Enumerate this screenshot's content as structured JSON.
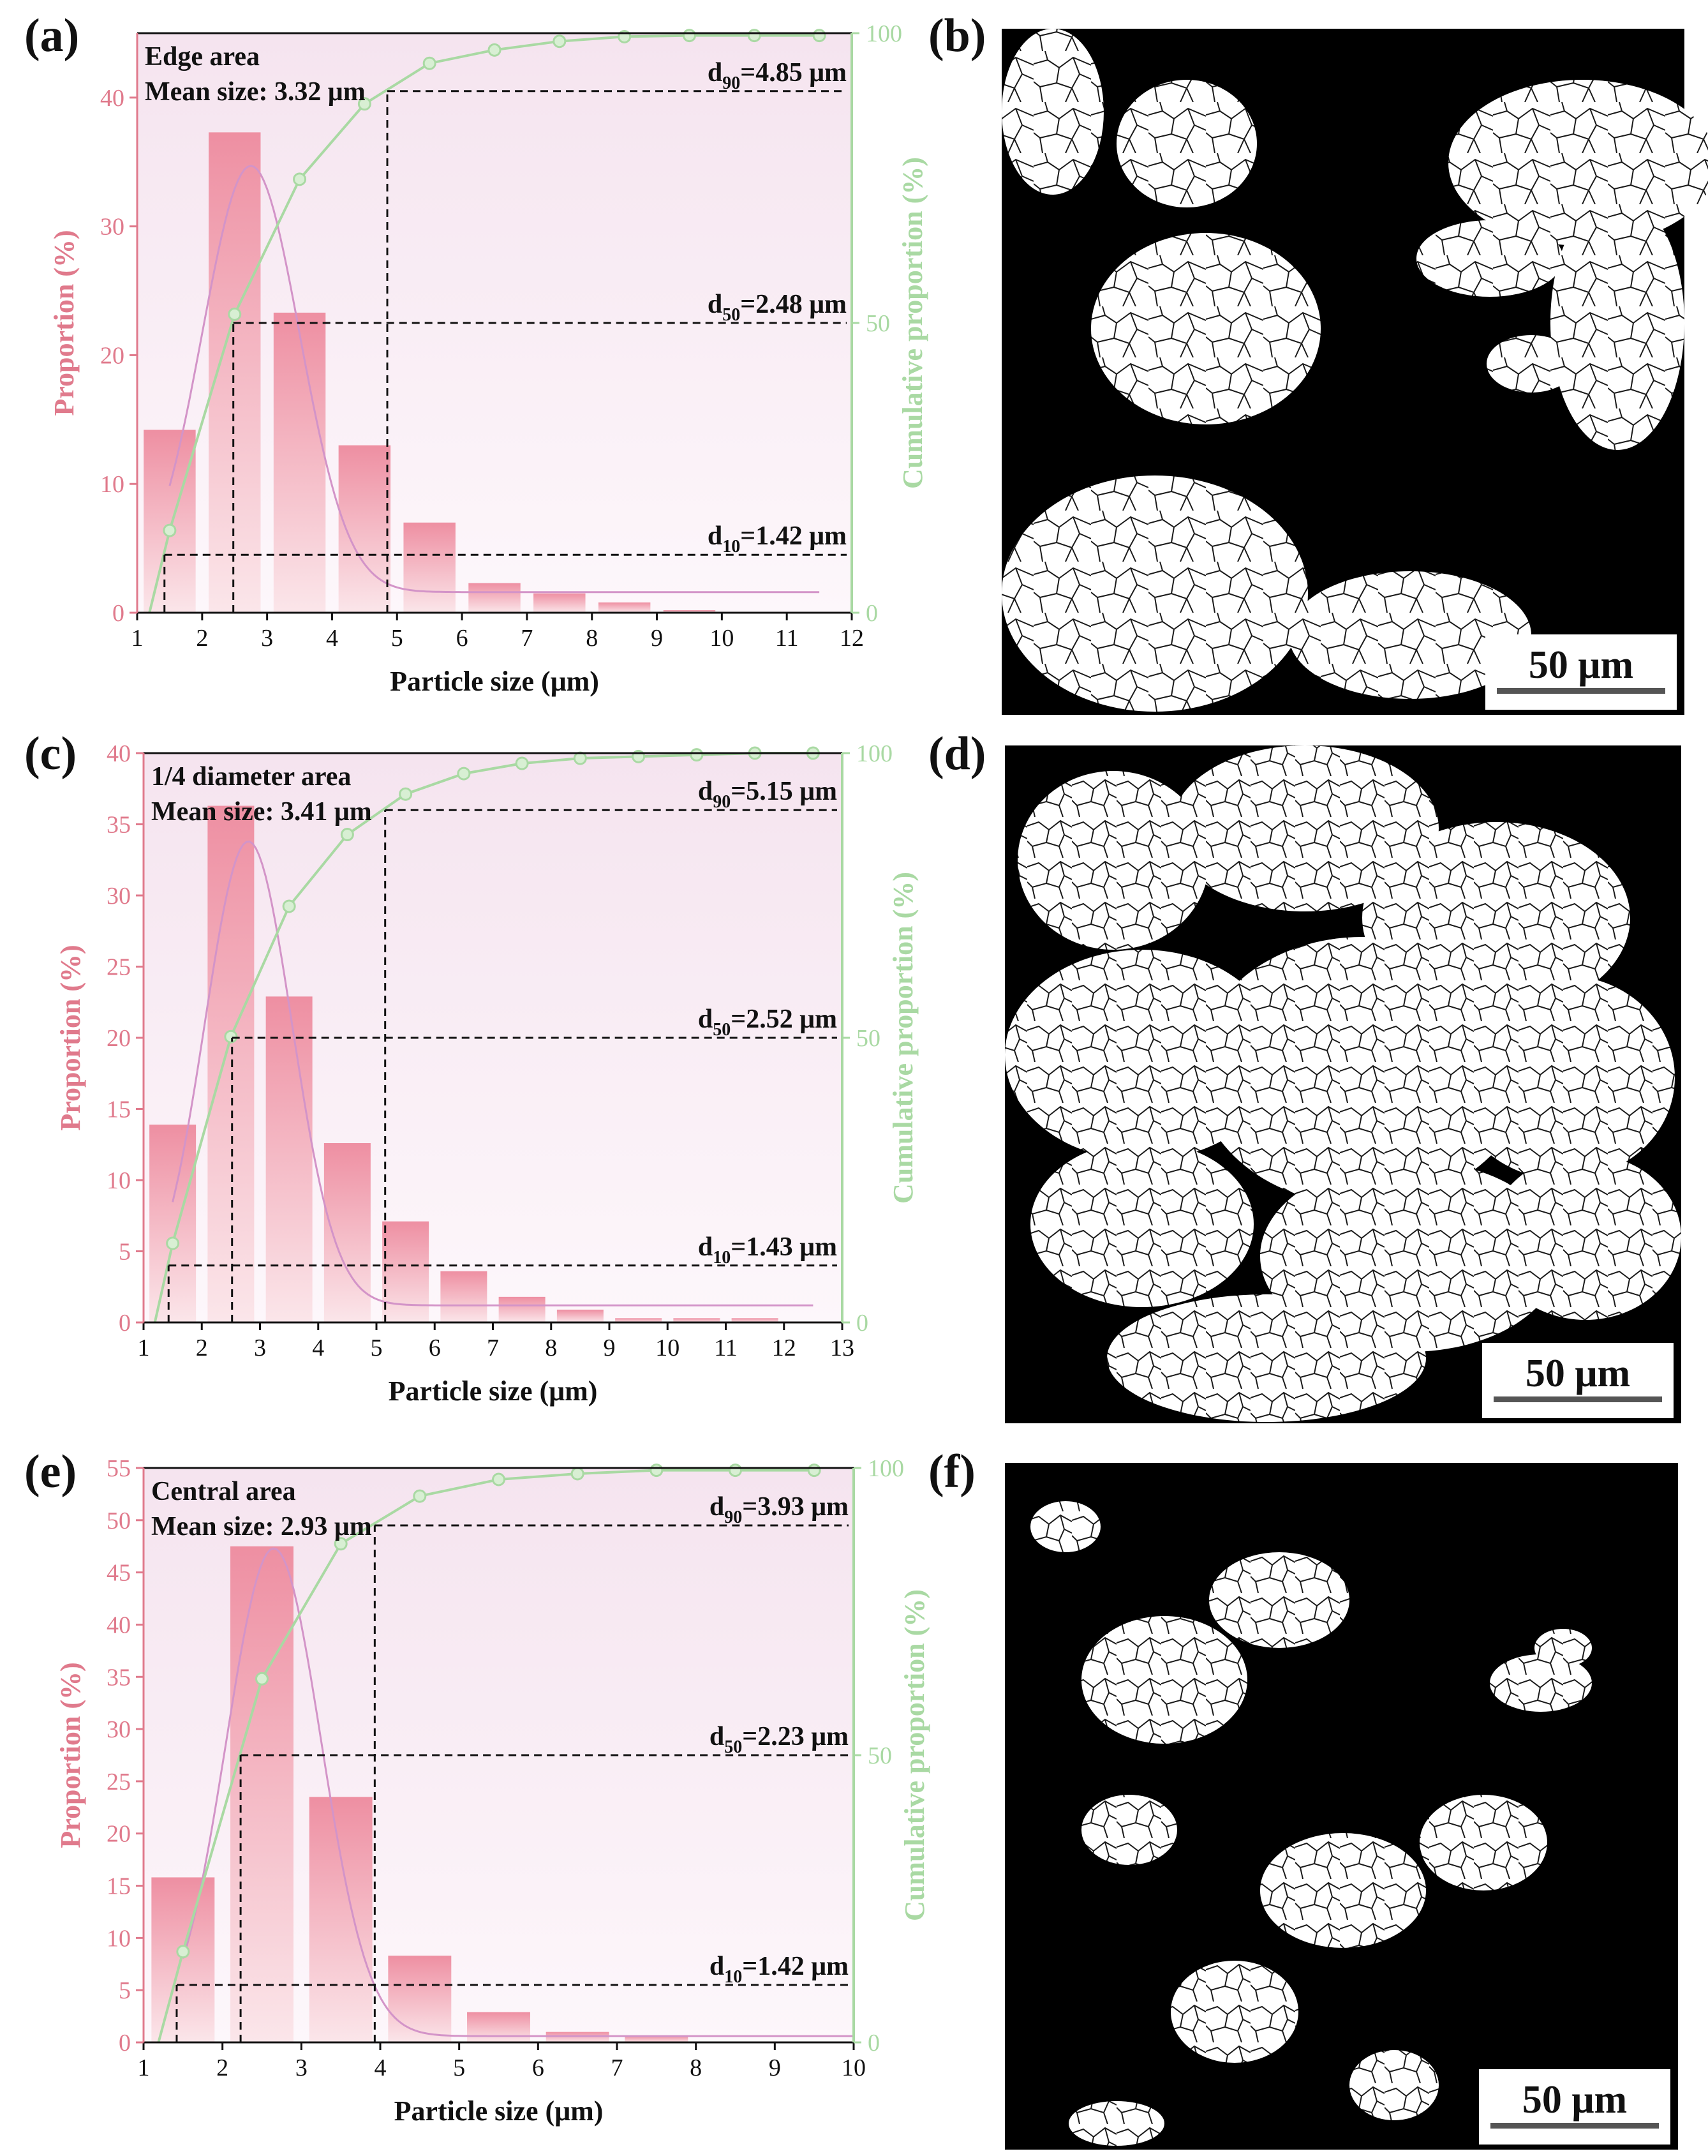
{
  "colors": {
    "bar": "#ee8fa2",
    "bar_light": "#fbe6ea",
    "plot_bg_top": "#f5e4ef",
    "plot_bg_bottom": "#fdf7fb",
    "fit_line": "#d394c8",
    "cumulative": "#a9d9a3",
    "left_axis": "#e07a8c",
    "right_axis": "#a9d9a3",
    "text": "#111111"
  },
  "scale_bar_label": "50 μm",
  "panels": [
    {
      "letter": "(a)",
      "kind": "chart",
      "chart_index": 0
    },
    {
      "letter": "(b)",
      "kind": "micrograph"
    },
    {
      "letter": "(c)",
      "kind": "chart",
      "chart_index": 1
    },
    {
      "letter": "(d)",
      "kind": "micrograph"
    },
    {
      "letter": "(e)",
      "kind": "chart",
      "chart_index": 2
    },
    {
      "letter": "(f)",
      "kind": "micrograph"
    }
  ],
  "chart_data": [
    {
      "type": "bar",
      "region": "Edge area",
      "mean_size": "Mean size: 3.32 μm",
      "xlabel": "Particle size (μm)",
      "ylabel": "Proportion (%)",
      "y2label": "Cumulative proportion (%)",
      "xlim": [
        1,
        12
      ],
      "xticks": [
        1,
        2,
        3,
        4,
        5,
        6,
        7,
        8,
        9,
        10,
        11,
        12
      ],
      "ylim": [
        0,
        45
      ],
      "yticks": [
        0,
        10,
        20,
        30,
        40
      ],
      "y2lim": [
        0,
        100
      ],
      "y2ticks": [
        0,
        50,
        100
      ],
      "bars": {
        "x": [
          1.5,
          2.5,
          3.5,
          4.5,
          5.5,
          6.5,
          7.5,
          8.5,
          9.5
        ],
        "values": [
          14.2,
          37.3,
          23.3,
          13.0,
          7.0,
          2.3,
          1.5,
          0.8,
          0.2
        ]
      },
      "fit": {
        "mu": 2.75,
        "sigma": 0.75,
        "peak": 34.7,
        "baseline": 1.6,
        "x_start": 1.5,
        "x_end": 11.5
      },
      "cumulative": {
        "x": [
          1.5,
          2.5,
          3.5,
          4.5,
          5.5,
          6.5,
          7.5,
          8.5,
          9.5,
          10.5,
          11.5
        ],
        "values": [
          14.2,
          51.5,
          74.8,
          87.8,
          94.8,
          97.1,
          98.6,
          99.4,
          99.6,
          99.6,
          99.6
        ]
      },
      "percentiles": [
        {
          "label": "d",
          "sub": "10",
          "value": "=1.42 μm",
          "x": 1.42,
          "level": 10
        },
        {
          "label": "d",
          "sub": "50",
          "value": "=2.48 μm",
          "x": 2.48,
          "level": 50
        },
        {
          "label": "d",
          "sub": "90",
          "value": "=4.85 μm",
          "x": 4.85,
          "level": 90
        }
      ]
    },
    {
      "type": "bar",
      "region": "1/4 diameter area",
      "mean_size": "Mean size: 3.41 μm",
      "xlabel": "Particle size (μm)",
      "ylabel": "Proportion (%)",
      "y2label": "Cumulative proportion (%)",
      "xlim": [
        1,
        13
      ],
      "xticks": [
        1,
        2,
        3,
        4,
        5,
        6,
        7,
        8,
        9,
        10,
        11,
        12,
        13
      ],
      "ylim": [
        0,
        40
      ],
      "yticks": [
        0,
        5,
        10,
        15,
        20,
        25,
        30,
        35,
        40
      ],
      "y2lim": [
        0,
        100
      ],
      "y2ticks": [
        0,
        50,
        100
      ],
      "bars": {
        "x": [
          1.5,
          2.5,
          3.5,
          4.5,
          5.5,
          6.5,
          7.5,
          8.5,
          9.5,
          10.5,
          11.5
        ],
        "values": [
          13.9,
          36.3,
          22.9,
          12.6,
          7.1,
          3.6,
          1.8,
          0.9,
          0.3,
          0.3,
          0.3
        ]
      },
      "fit": {
        "mu": 2.8,
        "sigma": 0.75,
        "peak": 33.8,
        "baseline": 1.2,
        "x_start": 1.5,
        "x_end": 12.5
      },
      "cumulative": {
        "x": [
          1.5,
          2.5,
          3.5,
          4.5,
          5.5,
          6.5,
          7.5,
          8.5,
          9.5,
          10.5,
          11.5,
          12.5
        ],
        "values": [
          13.9,
          50.2,
          73.1,
          85.7,
          92.8,
          96.4,
          98.2,
          99.1,
          99.4,
          99.7,
          100,
          100
        ]
      },
      "percentiles": [
        {
          "label": "d",
          "sub": "10",
          "value": "=1.43 μm",
          "x": 1.43,
          "level": 10
        },
        {
          "label": "d",
          "sub": "50",
          "value": "=2.52 μm",
          "x": 2.52,
          "level": 50
        },
        {
          "label": "d",
          "sub": "90",
          "value": "=5.15 μm",
          "x": 5.15,
          "level": 90
        }
      ]
    },
    {
      "type": "bar",
      "region": "Central area",
      "mean_size": "Mean size: 2.93 μm",
      "xlabel": "Particle size (μm)",
      "ylabel": "Proportion (%)",
      "y2label": "Cumulative proportion (%)",
      "xlim": [
        1,
        10
      ],
      "xticks": [
        1,
        2,
        3,
        4,
        5,
        6,
        7,
        8,
        9,
        10
      ],
      "ylim": [
        0,
        55
      ],
      "yticks": [
        0,
        5,
        10,
        15,
        20,
        25,
        30,
        35,
        40,
        45,
        50,
        55
      ],
      "y2lim": [
        0,
        100
      ],
      "y2ticks": [
        0,
        50,
        100
      ],
      "bars": {
        "x": [
          1.5,
          2.5,
          3.5,
          4.5,
          5.5,
          6.5,
          7.5
        ],
        "values": [
          15.8,
          47.5,
          23.5,
          8.3,
          2.9,
          1.0,
          0.6
        ]
      },
      "fit": {
        "mu": 2.65,
        "sigma": 0.6,
        "peak": 47.3,
        "baseline": 0.6,
        "x_start": 1.5,
        "x_end": 10
      },
      "cumulative": {
        "x": [
          1.5,
          2.5,
          3.5,
          4.5,
          5.5,
          6.5,
          7.5,
          8.5,
          9.5
        ],
        "values": [
          15.8,
          63.3,
          86.8,
          95.1,
          98.0,
          99.0,
          99.6,
          99.6,
          99.6
        ]
      },
      "percentiles": [
        {
          "label": "d",
          "sub": "10",
          "value": "=1.42 μm",
          "x": 1.42,
          "level": 10
        },
        {
          "label": "d",
          "sub": "50",
          "value": "=2.23 μm",
          "x": 2.23,
          "level": 50
        },
        {
          "label": "d",
          "sub": "90",
          "value": "=3.93 μm",
          "x": 3.93,
          "level": 90
        }
      ]
    }
  ]
}
